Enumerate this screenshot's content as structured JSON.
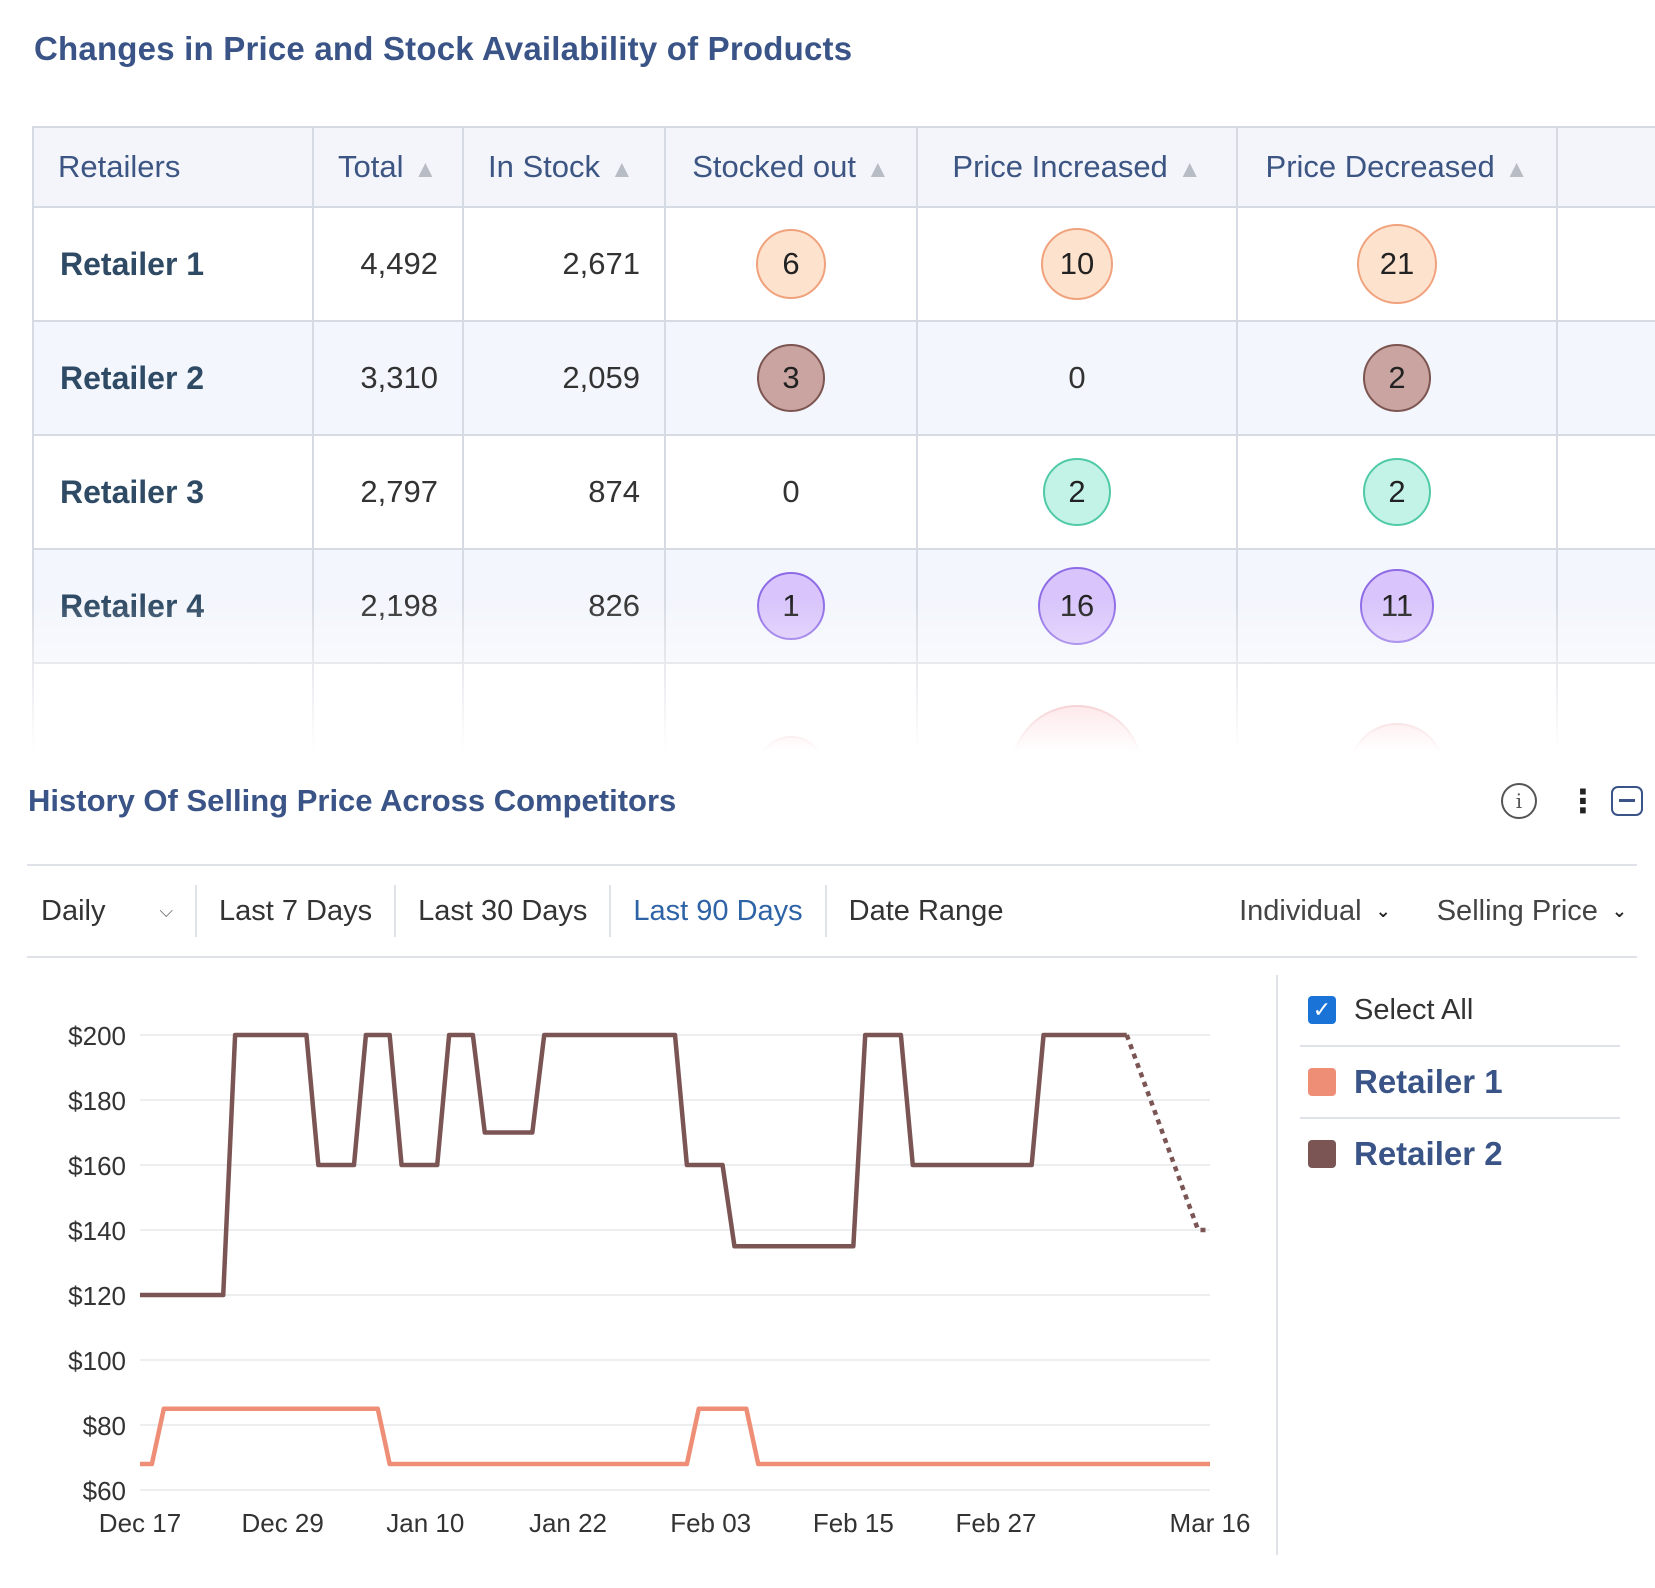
{
  "table_section": {
    "title": "Changes in Price and Stock Availability of Products",
    "headers": [
      "Retailers",
      "Total",
      "In Stock",
      "Stocked out",
      "Price Increased",
      "Price Decreased"
    ],
    "rows": [
      {
        "name": "Retailer 1",
        "total": "4,492",
        "in_stock": "2,671",
        "stocked_out": "6",
        "price_increased": "10",
        "price_decreased": "21"
      },
      {
        "name": "Retailer 2",
        "total": "3,310",
        "in_stock": "2,059",
        "stocked_out": "3",
        "price_increased": "0",
        "price_decreased": "2"
      },
      {
        "name": "Retailer 3",
        "total": "2,797",
        "in_stock": "874",
        "stocked_out": "0",
        "price_increased": "2",
        "price_decreased": "2"
      },
      {
        "name": "Retailer 4",
        "total": "2,198",
        "in_stock": "826",
        "stocked_out": "1",
        "price_increased": "16",
        "price_decreased": "11"
      }
    ],
    "bubble_colors": {
      "retailer1": {
        "fill": "#fde2cd",
        "stroke": "#f0a27c"
      },
      "retailer2": {
        "fill": "#c9a4a0",
        "stroke": "#7c5551"
      },
      "retailer3": {
        "fill": "#c2f3e6",
        "stroke": "#4fc9a6"
      },
      "retailer4": {
        "fill": "#d9c5fb",
        "stroke": "#8e6be6"
      },
      "retailer5": {
        "fill": "#fcb7bd",
        "stroke": "#e06d77"
      }
    }
  },
  "chart_section": {
    "title": "History Of Selling Price Across Competitors",
    "icons": [
      "info-icon",
      "kebab-menu-icon",
      "collapse-icon"
    ],
    "toolbar": {
      "granularity": "Daily",
      "ranges": [
        "Last 7 Days",
        "Last 30 Days",
        "Last 90 Days",
        "Date Range"
      ],
      "active_range": "Last 90 Days",
      "view_mode": "Individual",
      "metric": "Selling Price"
    },
    "legend": {
      "select_all": "Select All",
      "items": [
        {
          "label": "Retailer 1",
          "color": "#ef8e76"
        },
        {
          "label": "Retailer 2",
          "color": "#7b5553"
        }
      ]
    }
  },
  "chart_data": {
    "type": "line",
    "xlabel": "",
    "ylabel": "",
    "ylim": [
      60,
      200
    ],
    "yticks": [
      "$200",
      "$180",
      "$160",
      "$140",
      "$120",
      "$100",
      "$80",
      "$60"
    ],
    "x_tick_labels": [
      "Dec 17",
      "Dec 29",
      "Jan 10",
      "Jan 22",
      "Feb 03",
      "Feb 15",
      "Feb 27",
      "Mar 16"
    ],
    "grid": true,
    "series": [
      {
        "name": "Retailer 1",
        "color": "#ef8e76",
        "points": [
          [
            "Dec 17",
            68
          ],
          [
            "Dec 18",
            68
          ],
          [
            "Dec 19",
            85
          ],
          [
            "Jan 06",
            85
          ],
          [
            "Jan 07",
            68
          ],
          [
            "Feb 01",
            68
          ],
          [
            "Feb 02",
            85
          ],
          [
            "Feb 06",
            85
          ],
          [
            "Feb 07",
            68
          ],
          [
            "Mar 16",
            68
          ]
        ]
      },
      {
        "name": "Retailer 2",
        "color": "#7b5553",
        "dashed_from": "Mar 07",
        "points": [
          [
            "Dec 17",
            120
          ],
          [
            "Dec 24",
            120
          ],
          [
            "Dec 25",
            200
          ],
          [
            "Dec 31",
            200
          ],
          [
            "Jan 01",
            160
          ],
          [
            "Jan 04",
            160
          ],
          [
            "Jan 05",
            200
          ],
          [
            "Jan 07",
            200
          ],
          [
            "Jan 08",
            160
          ],
          [
            "Jan 11",
            160
          ],
          [
            "Jan 12",
            200
          ],
          [
            "Jan 14",
            200
          ],
          [
            "Jan 15",
            170
          ],
          [
            "Jan 19",
            170
          ],
          [
            "Jan 20",
            200
          ],
          [
            "Jan 31",
            200
          ],
          [
            "Feb 01",
            160
          ],
          [
            "Feb 04",
            160
          ],
          [
            "Feb 05",
            135
          ],
          [
            "Feb 15",
            135
          ],
          [
            "Feb 16",
            200
          ],
          [
            "Feb 19",
            200
          ],
          [
            "Feb 20",
            160
          ],
          [
            "Mar 01",
            160
          ],
          [
            "Mar 02",
            200
          ],
          [
            "Mar 09",
            200
          ],
          [
            "Mar 15",
            140
          ],
          [
            "Mar 16",
            140
          ]
        ]
      }
    ]
  }
}
